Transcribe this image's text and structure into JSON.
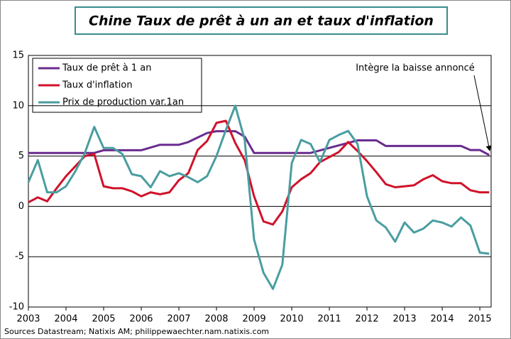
{
  "chart_data": {
    "type": "line",
    "title": "Chine Taux de prêt à un an et taux d'inflation",
    "annotation": "Intègre la baisse annoncé",
    "source": "Sources Datastream; Natixis AM; philippewaechter.nam.natixis.com",
    "x": [
      2003,
      2003.25,
      2003.5,
      2003.75,
      2004,
      2004.25,
      2004.5,
      2004.75,
      2005,
      2005.25,
      2005.5,
      2005.75,
      2006,
      2006.25,
      2006.5,
      2006.75,
      2007,
      2007.25,
      2007.5,
      2007.75,
      2008,
      2008.25,
      2008.5,
      2008.75,
      2009,
      2009.25,
      2009.5,
      2009.75,
      2010,
      2010.25,
      2010.5,
      2010.75,
      2011,
      2011.25,
      2011.5,
      2011.75,
      2012,
      2012.25,
      2012.5,
      2012.75,
      2013,
      2013.25,
      2013.5,
      2013.75,
      2014,
      2014.25,
      2014.5,
      2014.75,
      2015,
      2015.25
    ],
    "series": [
      {
        "name": "Taux de prêt à 1 an",
        "color": "#6a2c8e",
        "values": [
          5.31,
          5.31,
          5.31,
          5.31,
          5.31,
          5.31,
          5.31,
          5.31,
          5.58,
          5.58,
          5.58,
          5.58,
          5.58,
          5.85,
          6.12,
          6.12,
          6.12,
          6.39,
          6.84,
          7.29,
          7.47,
          7.47,
          7.47,
          6.93,
          5.31,
          5.31,
          5.31,
          5.31,
          5.31,
          5.31,
          5.31,
          5.56,
          5.81,
          6.06,
          6.31,
          6.56,
          6.56,
          6.56,
          6.0,
          6.0,
          6.0,
          6.0,
          6.0,
          6.0,
          6.0,
          6.0,
          6.0,
          5.6,
          5.6,
          5.1
        ]
      },
      {
        "name": "Taux d'inflation",
        "color": "#d0122a",
        "values": [
          0.4,
          0.9,
          0.5,
          1.8,
          3.0,
          4.0,
          5.0,
          5.2,
          2.0,
          1.8,
          1.8,
          1.5,
          1.0,
          1.4,
          1.2,
          1.4,
          2.6,
          3.3,
          5.6,
          6.5,
          8.3,
          8.5,
          6.3,
          4.6,
          1.0,
          -1.5,
          -1.8,
          -0.5,
          1.9,
          2.7,
          3.3,
          4.4,
          4.9,
          5.4,
          6.4,
          5.5,
          4.5,
          3.4,
          2.2,
          1.9,
          2.0,
          2.1,
          2.7,
          3.1,
          2.5,
          2.3,
          2.3,
          1.6,
          1.4,
          1.4
        ]
      },
      {
        "name": "Prix de production var.1an",
        "color": "#4a9da0",
        "values": [
          2.4,
          4.6,
          1.4,
          1.4,
          2.0,
          3.5,
          5.3,
          7.9,
          5.8,
          5.8,
          5.2,
          3.2,
          3.0,
          1.9,
          3.5,
          3.0,
          3.3,
          2.9,
          2.4,
          3.0,
          5.0,
          7.6,
          10.0,
          6.6,
          -3.3,
          -6.6,
          -8.2,
          -5.8,
          4.3,
          6.6,
          6.2,
          4.4,
          6.6,
          7.1,
          7.5,
          6.2,
          1.0,
          -1.4,
          -2.1,
          -3.5,
          -1.6,
          -2.6,
          -2.2,
          -1.4,
          -1.6,
          -2.0,
          -1.1,
          -1.9,
          -4.6,
          -4.7
        ]
      }
    ],
    "xlim": [
      2003,
      2015.3
    ],
    "xticks": [
      2003,
      2004,
      2005,
      2006,
      2007,
      2008,
      2009,
      2010,
      2011,
      2012,
      2013,
      2014,
      2015
    ],
    "ylim": [
      -10,
      15
    ],
    "yticks": [
      -10,
      -5,
      0,
      5,
      10,
      15
    ],
    "grid": true
  }
}
